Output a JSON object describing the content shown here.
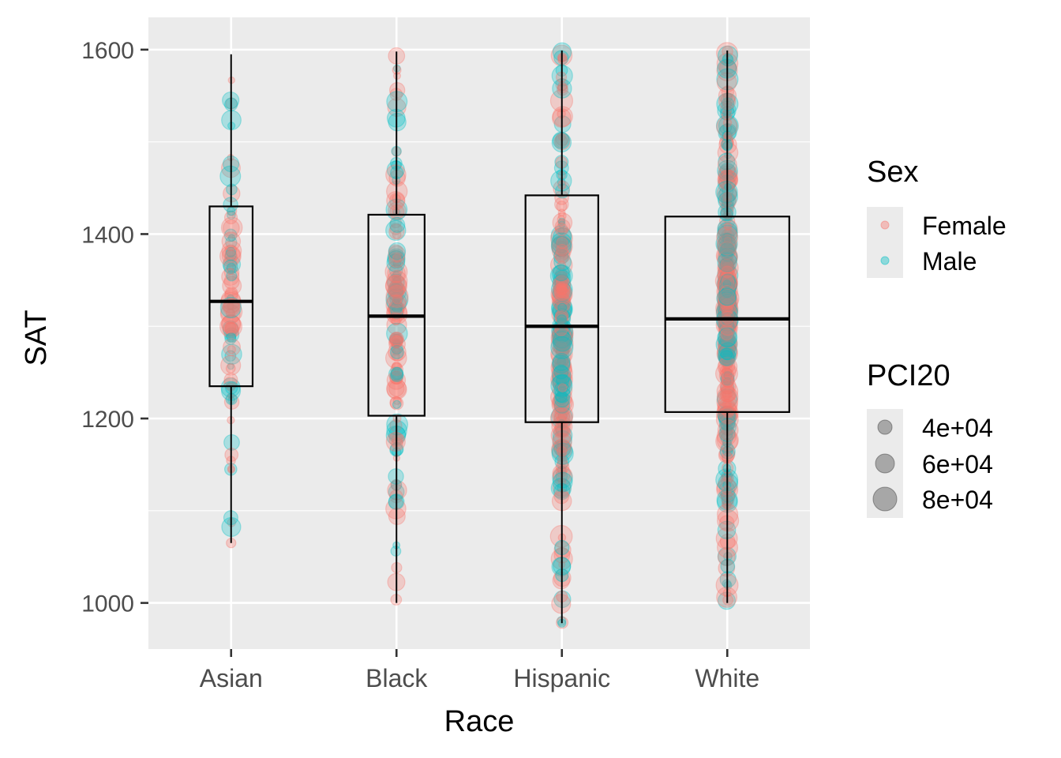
{
  "chart_data": {
    "type": "box",
    "xlabel": "Race",
    "ylabel": "SAT",
    "categories": [
      "Asian",
      "Black",
      "Hispanic",
      "White"
    ],
    "ylim": [
      950,
      1635
    ],
    "y_ticks": [
      1000,
      1200,
      1400,
      1600
    ],
    "grid": true,
    "boxes": [
      {
        "category": "Asian",
        "whisker_low": 1065,
        "q1": 1235,
        "median": 1327,
        "q3": 1430,
        "whisker_high": 1595
      },
      {
        "category": "Black",
        "whisker_low": 1000,
        "q1": 1203,
        "median": 1311,
        "q3": 1421,
        "whisker_high": 1598
      },
      {
        "category": "Hispanic",
        "whisker_low": 978,
        "q1": 1196,
        "median": 1300,
        "q3": 1442,
        "whisker_high": 1599
      },
      {
        "category": "White",
        "whisker_low": 1000,
        "q1": 1207,
        "median": 1308,
        "q3": 1419,
        "whisker_high": 1599
      }
    ],
    "points_per_category": [
      90,
      150,
      260,
      420
    ],
    "outliers": [
      {
        "category": "Asian",
        "y": 1065,
        "sex": "Female",
        "pci": 45000
      },
      {
        "category": "Hispanic",
        "y": 1060,
        "sex": "Male",
        "pci": 60000
      },
      {
        "category": "Hispanic",
        "y": 1040,
        "sex": "Male",
        "pci": 70000
      },
      {
        "category": "Hispanic",
        "y": 1030,
        "sex": "Male",
        "pci": 55000
      },
      {
        "category": "Hispanic",
        "y": 1007,
        "sex": "Female",
        "pci": 50000
      },
      {
        "category": "Hispanic",
        "y": 978,
        "sex": "Male",
        "pci": 40000
      }
    ],
    "legends": [
      {
        "title": "Sex",
        "placement": "right",
        "items": [
          {
            "label": "Female",
            "color": "#F8766D"
          },
          {
            "label": "Male",
            "color": "#00BFC4"
          }
        ]
      },
      {
        "title": "PCI20",
        "placement": "right",
        "items": [
          {
            "label": "4e+04",
            "pci": 40000
          },
          {
            "label": "6e+04",
            "pci": 60000
          },
          {
            "label": "8e+04",
            "pci": 80000
          }
        ]
      }
    ],
    "colors": {
      "panel": "#EBEBEB",
      "grid_major": "#FFFFFF",
      "female": "#F8766D",
      "male": "#00BFC4",
      "size_key": "#555555",
      "box": "#000000"
    }
  }
}
